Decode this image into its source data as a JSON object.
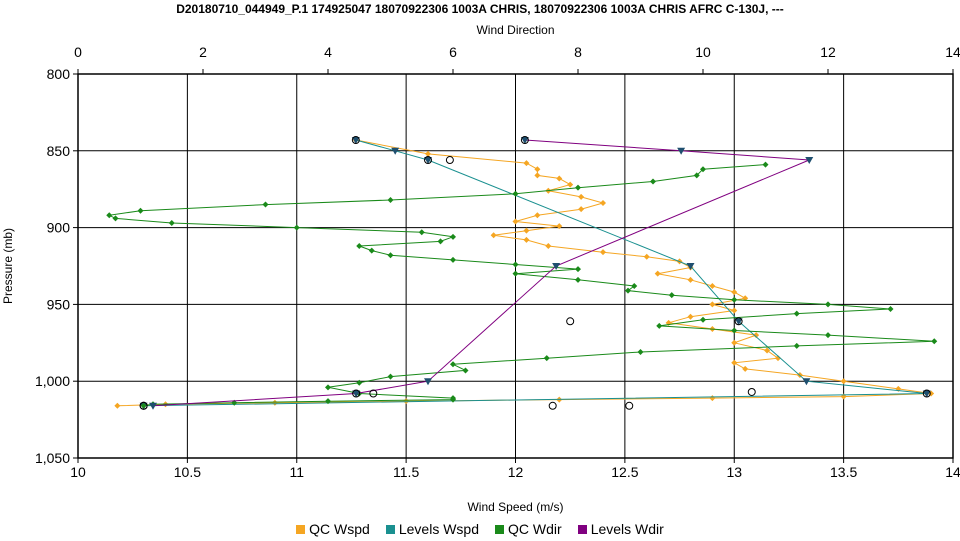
{
  "chart_data": {
    "type": "line",
    "title": "D20180710_044949_P.1 174925047 18070922306 1003A CHRIS, 18070922306 1003A CHRIS AFRC C-130J, ---",
    "xlabel": "Wind Speed (m/s)",
    "x2label": "Wind Direction",
    "ylabel": "Pressure (mb)",
    "xlim": [
      10,
      14
    ],
    "x2lim": [
      0,
      14
    ],
    "ylim": [
      800,
      1050
    ],
    "y_inverted": true,
    "grid": true,
    "x_ticks": [
      "10",
      "10.5",
      "11",
      "11.5",
      "12",
      "12.5",
      "13",
      "13.5",
      "14"
    ],
    "x2_ticks": [
      "0",
      "2",
      "4",
      "6",
      "8",
      "10",
      "12",
      "14"
    ],
    "y_ticks": [
      "800",
      "850",
      "900",
      "950",
      "1,000",
      "1,050"
    ],
    "legend_position": "bottom",
    "series": [
      {
        "name": "QC Wspd",
        "color": "#f5a623",
        "axis": "bottom",
        "points": [
          [
            11.27,
            843
          ],
          [
            11.6,
            852
          ],
          [
            12.05,
            858
          ],
          [
            12.1,
            862
          ],
          [
            12.1,
            866
          ],
          [
            12.2,
            868
          ],
          [
            12.25,
            872
          ],
          [
            12.15,
            876
          ],
          [
            12.3,
            880
          ],
          [
            12.4,
            884
          ],
          [
            12.3,
            888
          ],
          [
            12.1,
            892
          ],
          [
            12.0,
            896
          ],
          [
            12.2,
            899
          ],
          [
            12.05,
            902
          ],
          [
            11.9,
            905
          ],
          [
            12.05,
            908
          ],
          [
            12.15,
            912
          ],
          [
            12.4,
            916
          ],
          [
            12.6,
            919
          ],
          [
            12.75,
            922
          ],
          [
            12.8,
            926
          ],
          [
            12.65,
            930
          ],
          [
            12.8,
            934
          ],
          [
            12.9,
            938
          ],
          [
            13.0,
            942
          ],
          [
            13.05,
            946
          ],
          [
            12.9,
            950
          ],
          [
            13.0,
            954
          ],
          [
            12.8,
            958
          ],
          [
            12.7,
            962
          ],
          [
            12.9,
            966
          ],
          [
            13.1,
            970
          ],
          [
            13.0,
            975
          ],
          [
            13.15,
            980
          ],
          [
            13.2,
            985
          ],
          [
            13.0,
            988
          ],
          [
            13.05,
            992
          ],
          [
            13.3,
            996
          ],
          [
            13.5,
            1000
          ],
          [
            13.75,
            1005
          ],
          [
            13.9,
            1008
          ],
          [
            13.5,
            1010
          ],
          [
            12.9,
            1011
          ],
          [
            12.2,
            1012
          ],
          [
            11.5,
            1013
          ],
          [
            10.9,
            1014
          ],
          [
            10.4,
            1015
          ],
          [
            10.18,
            1016
          ]
        ]
      },
      {
        "name": "Levels Wspd",
        "color": "#1a9090",
        "axis": "bottom",
        "points": [
          [
            11.27,
            843
          ],
          [
            11.45,
            850
          ],
          [
            11.6,
            856
          ],
          [
            12.8,
            925
          ],
          [
            13.02,
            961
          ],
          [
            13.33,
            1000
          ],
          [
            13.88,
            1008
          ],
          [
            10.3,
            1016
          ]
        ]
      },
      {
        "name": "QC Wdir",
        "color": "#1a8a1a",
        "axis": "top",
        "points": [
          [
            11.0,
            859
          ],
          [
            10.0,
            862
          ],
          [
            9.9,
            866
          ],
          [
            9.2,
            870
          ],
          [
            8.0,
            874
          ],
          [
            7.0,
            878
          ],
          [
            5.0,
            882
          ],
          [
            3.0,
            885
          ],
          [
            1.0,
            889
          ],
          [
            0.5,
            892
          ],
          [
            0.6,
            894
          ],
          [
            1.5,
            897
          ],
          [
            3.5,
            900
          ],
          [
            5.5,
            903
          ],
          [
            6.0,
            906
          ],
          [
            5.8,
            909
          ],
          [
            4.5,
            912
          ],
          [
            4.7,
            915
          ],
          [
            5.0,
            918
          ],
          [
            6.0,
            921
          ],
          [
            7.0,
            924
          ],
          [
            8.0,
            927
          ],
          [
            7.0,
            930
          ],
          [
            8.0,
            934
          ],
          [
            8.9,
            938
          ],
          [
            8.8,
            941
          ],
          [
            9.5,
            944
          ],
          [
            10.5,
            947
          ],
          [
            12.0,
            950
          ],
          [
            13.0,
            953
          ],
          [
            11.5,
            956
          ],
          [
            10.0,
            960
          ],
          [
            9.3,
            964
          ],
          [
            10.5,
            967
          ],
          [
            12.0,
            970
          ],
          [
            13.7,
            974
          ],
          [
            11.5,
            977
          ],
          [
            9.0,
            981
          ],
          [
            7.5,
            985
          ],
          [
            6.0,
            989
          ],
          [
            6.2,
            993
          ],
          [
            5.0,
            997
          ],
          [
            4.5,
            1001
          ],
          [
            4.0,
            1004
          ],
          [
            4.5,
            1008
          ],
          [
            6.0,
            1011
          ],
          [
            6.0,
            1012
          ],
          [
            4.0,
            1013
          ],
          [
            2.5,
            1014
          ],
          [
            1.2,
            1015
          ],
          [
            1.05,
            1016
          ]
        ]
      },
      {
        "name": "Levels Wdir",
        "color": "#800080",
        "axis": "top",
        "points": [
          [
            7.15,
            843
          ],
          [
            9.65,
            850
          ],
          [
            11.7,
            856
          ],
          [
            7.65,
            925
          ],
          [
            5.6,
            1000
          ],
          [
            4.45,
            1008
          ],
          [
            1.2,
            1016
          ]
        ]
      }
    ],
    "open_circles": [
      [
        11.27,
        843
      ],
      [
        11.6,
        856
      ],
      [
        11.7,
        856
      ],
      [
        7.15,
        843
      ],
      [
        13.02,
        961
      ],
      [
        13.88,
        1008
      ],
      [
        12.25,
        961
      ],
      [
        13.08,
        1007
      ],
      [
        11.35,
        1008
      ],
      [
        12.17,
        1016
      ],
      [
        12.52,
        1016
      ],
      [
        10.3,
        1016
      ],
      [
        1.05,
        1016
      ],
      [
        4.45,
        1008
      ]
    ]
  }
}
